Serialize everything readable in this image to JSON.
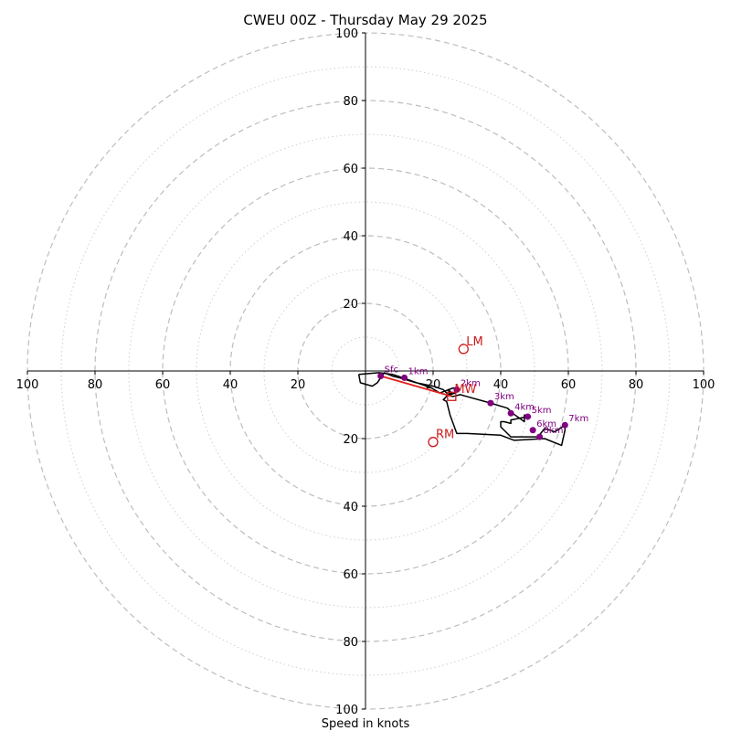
{
  "chart_data": {
    "type": "hodograph",
    "title": "CWEU 00Z - Thursday May 29 2025",
    "xlabel": "Speed in knots",
    "ylabel": "",
    "xlim": [
      -100,
      100
    ],
    "ylim": [
      -100,
      100
    ],
    "x_ticks": [
      {
        "value": -100,
        "label": "100"
      },
      {
        "value": -80,
        "label": "80"
      },
      {
        "value": -60,
        "label": "60"
      },
      {
        "value": -40,
        "label": "40"
      },
      {
        "value": -20,
        "label": "20"
      },
      {
        "value": 20,
        "label": "20"
      },
      {
        "value": 40,
        "label": "40"
      },
      {
        "value": 60,
        "label": "60"
      },
      {
        "value": 80,
        "label": "80"
      },
      {
        "value": 100,
        "label": "100"
      }
    ],
    "y_ticks": [
      {
        "value": 100,
        "label": "100"
      },
      {
        "value": 80,
        "label": "80"
      },
      {
        "value": 60,
        "label": "60"
      },
      {
        "value": 40,
        "label": "40"
      },
      {
        "value": 20,
        "label": "20"
      },
      {
        "value": -20,
        "label": "20"
      },
      {
        "value": -40,
        "label": "40"
      },
      {
        "value": -60,
        "label": "60"
      },
      {
        "value": -80,
        "label": "80"
      },
      {
        "value": -100,
        "label": "100"
      }
    ],
    "rings_major": [
      20,
      40,
      60,
      80,
      100
    ],
    "rings_minor": [
      10,
      30,
      50,
      70,
      90
    ],
    "grid": true,
    "colors": {
      "axis": "#000000",
      "ring_major": "#bdbdbd",
      "ring_minor": "#cfcfcf",
      "hodograph": "#000000",
      "height_marker": "#800080",
      "motion": "#cc1a1a",
      "shear_vector": "#e0201a"
    },
    "hodograph_trace": [
      [
        -2,
        -1
      ],
      [
        -1.5,
        -3.5
      ],
      [
        2,
        -4.5
      ],
      [
        3.5,
        -3.5
      ],
      [
        5.5,
        -0.5
      ],
      [
        8,
        -1.5
      ],
      [
        10,
        -2
      ],
      [
        15,
        -3.5
      ],
      [
        20,
        -4.5
      ],
      [
        23,
        -5.5
      ],
      [
        24,
        -6.5
      ],
      [
        25.5,
        -7.5
      ],
      [
        26,
        -7.5
      ],
      [
        28,
        -7
      ],
      [
        37,
        -9.5
      ],
      [
        42,
        -11
      ],
      [
        43.5,
        -12.5
      ],
      [
        47,
        -15
      ],
      [
        47,
        -13
      ],
      [
        48,
        -13.5
      ],
      [
        43,
        -14.5
      ],
      [
        43,
        -15.5
      ],
      [
        41,
        -15
      ],
      [
        40,
        -15
      ],
      [
        40,
        -16.5
      ],
      [
        43,
        -19.5
      ],
      [
        51,
        -19.5
      ],
      [
        53,
        -17
      ],
      [
        56,
        -18
      ],
      [
        59,
        -16
      ],
      [
        59,
        -17.5
      ],
      [
        58,
        -22
      ],
      [
        53,
        -20
      ],
      [
        44,
        -20.5
      ],
      [
        40,
        -19
      ],
      [
        30,
        -18.5
      ],
      [
        27,
        -18.5
      ],
      [
        25,
        -13
      ],
      [
        24,
        -9
      ],
      [
        23,
        -8.5
      ],
      [
        24,
        -7.5
      ],
      [
        25.5,
        -6.5
      ],
      [
        24.5,
        -5.5
      ],
      [
        25,
        -7
      ],
      [
        26.5,
        -6.5
      ],
      [
        27.5,
        -5.5
      ],
      [
        26,
        -5
      ],
      [
        22,
        -6.5
      ],
      [
        19.5,
        -5
      ],
      [
        11,
        -2
      ],
      [
        8,
        -1
      ],
      [
        4,
        -0.5
      ],
      [
        -2,
        -1
      ]
    ],
    "height_markers": [
      {
        "x": 4.5,
        "y": -1.5,
        "label": "Sfc"
      },
      {
        "x": 11.5,
        "y": -2,
        "label": "1km"
      },
      {
        "x": 27,
        "y": -5.5,
        "label": "2km"
      },
      {
        "x": 37,
        "y": -9.5,
        "label": "3km"
      },
      {
        "x": 43,
        "y": -12.5,
        "label": "4km"
      },
      {
        "x": 48,
        "y": -13.5,
        "label": "5km"
      },
      {
        "x": 49.5,
        "y": -17.5,
        "label": "6km"
      },
      {
        "x": 51.5,
        "y": -19.5,
        "label": "8km"
      },
      {
        "x": 59,
        "y": -16,
        "label": "7km"
      }
    ],
    "storm_motions": [
      {
        "name": "LM",
        "x": 29,
        "y": 6.5,
        "marker": "circle"
      },
      {
        "name": "RM",
        "x": 20,
        "y": -21,
        "marker": "circle"
      },
      {
        "name": "MW",
        "x": 25.5,
        "y": -7.5,
        "marker": "square"
      }
    ],
    "shear_vector": {
      "from": [
        4.5,
        -1.5
      ],
      "to": [
        25.5,
        -7.5
      ]
    }
  }
}
